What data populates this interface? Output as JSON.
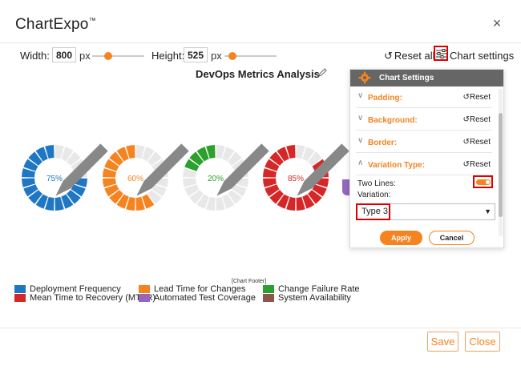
{
  "app": {
    "title": "ChartExpo",
    "trademark": "™",
    "close": "×"
  },
  "toolbar": {
    "width_label": "Width:",
    "width_value": "800",
    "width_unit": "px",
    "height_label": "Height:",
    "height_value": "525",
    "height_unit": "px",
    "width_slider_fraction": 0.3,
    "height_slider_fraction": 0.15,
    "reset_all": "Reset all",
    "chart_settings": "Chart settings"
  },
  "chart": {
    "title": "DevOps Metrics Analysis",
    "footer_tag": "[Chart Footer]",
    "donuts": [
      {
        "label": "75%",
        "value": 75,
        "color": "#1f77c4"
      },
      {
        "label": "60%",
        "value": 60,
        "color": "#f5831f"
      },
      {
        "label": "20%",
        "value": 20,
        "color": "#2ca02c"
      },
      {
        "label": "85%",
        "value": 85,
        "color": "#d62728"
      }
    ],
    "legend": [
      {
        "label": "Deployment Frequency",
        "color": "#1f77c4"
      },
      {
        "label": "Lead Time for Changes",
        "color": "#f5831f"
      },
      {
        "label": "Change Failure Rate",
        "color": "#2ca02c"
      },
      {
        "label": "Mean Time to Recovery (MTTR)",
        "color": "#d62728"
      },
      {
        "label": "Automated Test Coverage",
        "color": "#9467bd"
      },
      {
        "label": "System Availability",
        "color": "#8c564b"
      }
    ]
  },
  "panel": {
    "title": "Chart Settings",
    "rows": [
      {
        "label": "Padding:",
        "reset": "Reset",
        "expanded": false
      },
      {
        "label": "Background:",
        "reset": "Reset",
        "expanded": false
      },
      {
        "label": "Border:",
        "reset": "Reset",
        "expanded": false
      },
      {
        "label": "Variation Type:",
        "reset": "Reset",
        "expanded": true
      }
    ],
    "two_lines_label": "Two Lines:",
    "two_lines_on": true,
    "variation_label": "Variation:",
    "variation_value": "Type 3",
    "apply": "Apply",
    "cancel": "Cancel"
  },
  "footer": {
    "save": "Save",
    "close": "Close"
  }
}
